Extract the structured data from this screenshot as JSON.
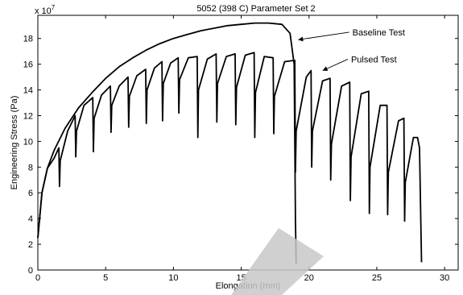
{
  "chart_data": {
    "type": "line",
    "title": "5052 (398 C) Parameter Set 2",
    "xlabel": "Elongation (mm)",
    "ylabel": "Engineering Stress (Pa)",
    "y_exponent_label": "x 10",
    "y_exponent_power": "7",
    "xlim": [
      0,
      31
    ],
    "ylim": [
      0,
      19.8
    ],
    "xticks": [
      0,
      5,
      10,
      15,
      20,
      25,
      30
    ],
    "yticks": [
      0,
      2,
      4,
      6,
      8,
      10,
      12,
      14,
      16,
      18
    ],
    "grid": false,
    "legend": "none",
    "series": [
      {
        "name": "Baseline Test",
        "x": [
          0,
          0.3,
          0.7,
          1.2,
          2,
          3,
          4,
          5,
          6,
          7,
          8,
          9,
          10,
          11,
          12,
          13,
          14,
          15,
          16,
          17,
          18,
          18.6,
          18.9,
          19.0,
          19.05
        ],
        "y": [
          2.5,
          6.0,
          7.9,
          9.3,
          11.0,
          12.6,
          13.8,
          14.9,
          15.8,
          16.5,
          17.1,
          17.6,
          18.0,
          18.3,
          18.6,
          18.8,
          19.0,
          19.1,
          19.2,
          19.2,
          19.1,
          18.4,
          16.0,
          4.0,
          0.5
        ]
      },
      {
        "name": "Pulsed Test",
        "x": [
          0.0,
          0.3,
          0.7,
          1.2,
          1.55,
          1.6,
          1.65,
          2.2,
          2.75,
          2.8,
          2.85,
          3.4,
          4.05,
          4.1,
          4.15,
          4.7,
          5.35,
          5.4,
          5.45,
          6.0,
          6.65,
          6.7,
          6.75,
          7.3,
          7.95,
          8.0,
          8.05,
          8.6,
          9.15,
          9.2,
          9.25,
          9.8,
          10.35,
          10.4,
          10.45,
          11.1,
          11.75,
          11.8,
          11.85,
          12.5,
          13.15,
          13.2,
          13.25,
          13.9,
          14.55,
          14.6,
          14.65,
          15.3,
          15.95,
          16.0,
          16.05,
          16.7,
          17.35,
          17.4,
          17.45,
          18.2,
          18.95,
          19.0,
          19.05,
          19.8,
          20.15,
          20.2,
          20.25,
          21.0,
          21.55,
          21.6,
          21.65,
          22.4,
          23.0,
          23.05,
          23.1,
          23.85,
          24.4,
          24.45,
          24.5,
          25.25,
          25.75,
          25.8,
          25.85,
          26.6,
          27.0,
          27.05,
          27.1,
          27.7,
          28.0,
          28.15,
          28.3
        ],
        "y": [
          2.5,
          6.0,
          7.9,
          8.7,
          9.5,
          6.5,
          8.5,
          10.8,
          12.0,
          8.8,
          10.8,
          12.8,
          13.4,
          9.2,
          11.8,
          13.6,
          14.3,
          10.7,
          12.8,
          14.3,
          15.0,
          11.1,
          13.5,
          15.1,
          15.6,
          11.4,
          14.0,
          15.7,
          16.2,
          11.6,
          14.5,
          16.1,
          16.5,
          12.2,
          14.8,
          16.5,
          16.6,
          10.3,
          14.0,
          16.4,
          16.8,
          11.5,
          14.5,
          16.6,
          16.8,
          11.3,
          14.2,
          16.7,
          16.9,
          10.3,
          13.8,
          16.6,
          16.5,
          10.6,
          13.5,
          16.2,
          16.3,
          7.6,
          10.8,
          15.0,
          15.5,
          8.0,
          10.8,
          14.7,
          14.9,
          7.0,
          9.8,
          14.3,
          14.6,
          5.4,
          8.8,
          13.7,
          13.9,
          4.4,
          8.0,
          12.8,
          12.8,
          4.3,
          7.6,
          11.6,
          11.8,
          3.8,
          6.8,
          10.3,
          10.3,
          9.5,
          0.6
        ]
      }
    ],
    "annotations": [
      {
        "text": "Baseline Test",
        "x": 23.2,
        "y": 18.3,
        "arrow_to_x": 19.2,
        "arrow_to_y": 17.9
      },
      {
        "text": "Pulsed Test",
        "x": 23.1,
        "y": 16.2,
        "arrow_to_x": 21.0,
        "arrow_to_y": 15.5
      }
    ]
  }
}
